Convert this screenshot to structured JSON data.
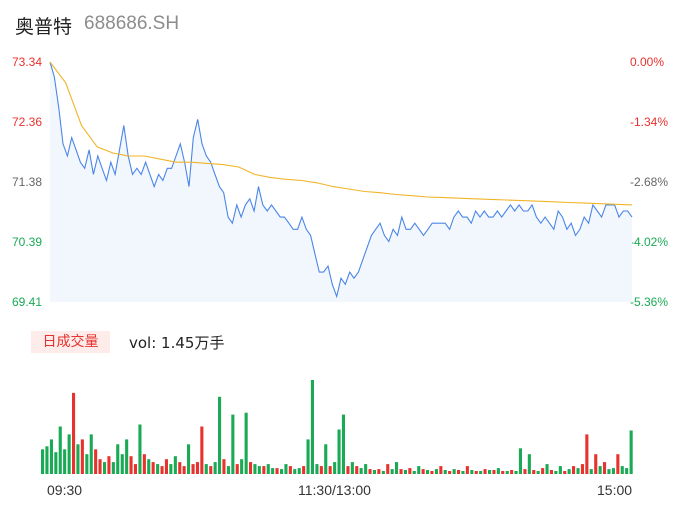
{
  "header": {
    "name": "奥普特",
    "code": "688686.SH"
  },
  "price_axis": [
    "73.34",
    "72.36",
    "71.38",
    "70.39",
    "69.41"
  ],
  "pct_axis": [
    "0.00%",
    "-1.34%",
    "-2.68%",
    "-4.02%",
    "-5.36%"
  ],
  "volume": {
    "badge": "日成交量",
    "text": "vol: 1.45万手"
  },
  "time_axis": [
    "09:30",
    "11:30/13:00",
    "15:00"
  ],
  "colors": {
    "price_line": "#4a86e8",
    "avg_line": "#f0b429",
    "up": "#e8322e",
    "down": "#1aaa55",
    "neutral": "#666666"
  },
  "chart_data": {
    "type": "line",
    "ylim": [
      69.41,
      73.34
    ],
    "series": [
      {
        "values": [
          73.34,
          73.1,
          72.6,
          72.0,
          71.8,
          72.1,
          71.9,
          71.7,
          71.6,
          71.9,
          71.5,
          71.8,
          71.6,
          71.4,
          71.7,
          71.5,
          71.9,
          72.3,
          71.8,
          71.5,
          71.6,
          71.5,
          71.7,
          71.5,
          71.3,
          71.5,
          71.4,
          71.6,
          71.6,
          71.8,
          72.0,
          71.7,
          71.3,
          72.1,
          72.4,
          72.0,
          71.8,
          71.7,
          71.5,
          71.3,
          71.2,
          70.8,
          70.7,
          71.0,
          70.8,
          71.0,
          71.1,
          70.9,
          71.3,
          71.0,
          70.9,
          71.0,
          70.9,
          70.8,
          70.8,
          70.7,
          70.6,
          70.6,
          70.8,
          70.6,
          70.5,
          70.2,
          69.9,
          69.9,
          70.0,
          69.7,
          69.5,
          69.8,
          69.7,
          69.9,
          69.8,
          69.9,
          70.1,
          70.3,
          70.5,
          70.6,
          70.7,
          70.5,
          70.4,
          70.6,
          70.5,
          70.8,
          70.6,
          70.6,
          70.7,
          70.6,
          70.5,
          70.6,
          70.7,
          70.7,
          70.7,
          70.7,
          70.6,
          70.8,
          70.9,
          70.8,
          70.8,
          70.7,
          70.9,
          70.8,
          70.9,
          70.8,
          70.8,
          70.9,
          70.8,
          70.9,
          71.0,
          70.9,
          71.0,
          70.9,
          70.9,
          71.0,
          70.8,
          70.7,
          70.8,
          70.7,
          70.6,
          70.9,
          70.8,
          70.6,
          70.7,
          70.5,
          70.6,
          70.8,
          70.7,
          71.0,
          70.9,
          70.8,
          71.0,
          71.0,
          71.0,
          70.8,
          70.9,
          70.9,
          70.8
        ],
        "color": "#4a86e8"
      },
      {
        "values": [
          73.34,
          73.0,
          72.3,
          71.95,
          71.85,
          71.8,
          71.8,
          71.75,
          71.7,
          71.7,
          71.68,
          71.66,
          71.62,
          71.5,
          71.45,
          71.42,
          71.4,
          71.36,
          71.3,
          71.26,
          71.22,
          71.2,
          71.17,
          71.15,
          71.13,
          71.12,
          71.11,
          71.1,
          71.09,
          71.08,
          71.07,
          71.06,
          71.05,
          71.04,
          71.03,
          71.02,
          71.01,
          71.0
        ],
        "color": "#f0b429"
      }
    ],
    "volume": [
      {
        "v": 25,
        "c": "down"
      },
      {
        "v": 28,
        "c": "down"
      },
      {
        "v": 35,
        "c": "down"
      },
      {
        "v": 22,
        "c": "down"
      },
      {
        "v": 48,
        "c": "down"
      },
      {
        "v": 25,
        "c": "down"
      },
      {
        "v": 40,
        "c": "down"
      },
      {
        "v": 82,
        "c": "up"
      },
      {
        "v": 30,
        "c": "down"
      },
      {
        "v": 35,
        "c": "up"
      },
      {
        "v": 20,
        "c": "down"
      },
      {
        "v": 40,
        "c": "down"
      },
      {
        "v": 25,
        "c": "up"
      },
      {
        "v": 15,
        "c": "up"
      },
      {
        "v": 12,
        "c": "down"
      },
      {
        "v": 18,
        "c": "up"
      },
      {
        "v": 12,
        "c": "down"
      },
      {
        "v": 30,
        "c": "down"
      },
      {
        "v": 20,
        "c": "down"
      },
      {
        "v": 35,
        "c": "down"
      },
      {
        "v": 18,
        "c": "up"
      },
      {
        "v": 10,
        "c": "up"
      },
      {
        "v": 50,
        "c": "down"
      },
      {
        "v": 20,
        "c": "up"
      },
      {
        "v": 15,
        "c": "down"
      },
      {
        "v": 12,
        "c": "up"
      },
      {
        "v": 10,
        "c": "down"
      },
      {
        "v": 8,
        "c": "up"
      },
      {
        "v": 15,
        "c": "up"
      },
      {
        "v": 10,
        "c": "down"
      },
      {
        "v": 18,
        "c": "down"
      },
      {
        "v": 12,
        "c": "up"
      },
      {
        "v": 8,
        "c": "up"
      },
      {
        "v": 30,
        "c": "down"
      },
      {
        "v": 10,
        "c": "up"
      },
      {
        "v": 12,
        "c": "up"
      },
      {
        "v": 48,
        "c": "up"
      },
      {
        "v": 10,
        "c": "down"
      },
      {
        "v": 8,
        "c": "up"
      },
      {
        "v": 12,
        "c": "down"
      },
      {
        "v": 78,
        "c": "down"
      },
      {
        "v": 15,
        "c": "up"
      },
      {
        "v": 8,
        "c": "down"
      },
      {
        "v": 60,
        "c": "down"
      },
      {
        "v": 10,
        "c": "up"
      },
      {
        "v": 15,
        "c": "down"
      },
      {
        "v": 62,
        "c": "down"
      },
      {
        "v": 12,
        "c": "up"
      },
      {
        "v": 10,
        "c": "down"
      },
      {
        "v": 8,
        "c": "down"
      },
      {
        "v": 8,
        "c": "up"
      },
      {
        "v": 10,
        "c": "down"
      },
      {
        "v": 6,
        "c": "down"
      },
      {
        "v": 6,
        "c": "up"
      },
      {
        "v": 5,
        "c": "down"
      },
      {
        "v": 10,
        "c": "down"
      },
      {
        "v": 8,
        "c": "up"
      },
      {
        "v": 5,
        "c": "down"
      },
      {
        "v": 6,
        "c": "down"
      },
      {
        "v": 8,
        "c": "up"
      },
      {
        "v": 35,
        "c": "down"
      },
      {
        "v": 95,
        "c": "down"
      },
      {
        "v": 10,
        "c": "down"
      },
      {
        "v": 8,
        "c": "up"
      },
      {
        "v": 30,
        "c": "down"
      },
      {
        "v": 8,
        "c": "up"
      },
      {
        "v": 12,
        "c": "down"
      },
      {
        "v": 45,
        "c": "down"
      },
      {
        "v": 60,
        "c": "down"
      },
      {
        "v": 8,
        "c": "up"
      },
      {
        "v": 12,
        "c": "down"
      },
      {
        "v": 8,
        "c": "up"
      },
      {
        "v": 6,
        "c": "down"
      },
      {
        "v": 10,
        "c": "down"
      },
      {
        "v": 5,
        "c": "up"
      },
      {
        "v": 4,
        "c": "down"
      },
      {
        "v": 5,
        "c": "up"
      },
      {
        "v": 3,
        "c": "down"
      },
      {
        "v": 10,
        "c": "up"
      },
      {
        "v": 5,
        "c": "down"
      },
      {
        "v": 12,
        "c": "down"
      },
      {
        "v": 5,
        "c": "up"
      },
      {
        "v": 4,
        "c": "down"
      },
      {
        "v": 6,
        "c": "up"
      },
      {
        "v": 3,
        "c": "down"
      },
      {
        "v": 8,
        "c": "down"
      },
      {
        "v": 5,
        "c": "up"
      },
      {
        "v": 4,
        "c": "down"
      },
      {
        "v": 3,
        "c": "up"
      },
      {
        "v": 5,
        "c": "down"
      },
      {
        "v": 8,
        "c": "up"
      },
      {
        "v": 4,
        "c": "down"
      },
      {
        "v": 3,
        "c": "up"
      },
      {
        "v": 5,
        "c": "down"
      },
      {
        "v": 4,
        "c": "up"
      },
      {
        "v": 3,
        "c": "down"
      },
      {
        "v": 8,
        "c": "up"
      },
      {
        "v": 4,
        "c": "down"
      },
      {
        "v": 3,
        "c": "up"
      },
      {
        "v": 3,
        "c": "down"
      },
      {
        "v": 5,
        "c": "up"
      },
      {
        "v": 4,
        "c": "down"
      },
      {
        "v": 4,
        "c": "up"
      },
      {
        "v": 6,
        "c": "down"
      },
      {
        "v": 3,
        "c": "up"
      },
      {
        "v": 3,
        "c": "down"
      },
      {
        "v": 4,
        "c": "up"
      },
      {
        "v": 3,
        "c": "down"
      },
      {
        "v": 26,
        "c": "down"
      },
      {
        "v": 5,
        "c": "up"
      },
      {
        "v": 20,
        "c": "down"
      },
      {
        "v": 4,
        "c": "up"
      },
      {
        "v": 3,
        "c": "down"
      },
      {
        "v": 6,
        "c": "up"
      },
      {
        "v": 10,
        "c": "down"
      },
      {
        "v": 4,
        "c": "up"
      },
      {
        "v": 3,
        "c": "down"
      },
      {
        "v": 8,
        "c": "down"
      },
      {
        "v": 3,
        "c": "up"
      },
      {
        "v": 5,
        "c": "down"
      },
      {
        "v": 8,
        "c": "up"
      },
      {
        "v": 6,
        "c": "down"
      },
      {
        "v": 10,
        "c": "up"
      },
      {
        "v": 40,
        "c": "up"
      },
      {
        "v": 5,
        "c": "down"
      },
      {
        "v": 20,
        "c": "up"
      },
      {
        "v": 8,
        "c": "down"
      },
      {
        "v": 12,
        "c": "up"
      },
      {
        "v": 5,
        "c": "down"
      },
      {
        "v": 6,
        "c": "down"
      },
      {
        "v": 20,
        "c": "up"
      },
      {
        "v": 8,
        "c": "down"
      },
      {
        "v": 6,
        "c": "down"
      },
      {
        "v": 44,
        "c": "down"
      }
    ]
  }
}
